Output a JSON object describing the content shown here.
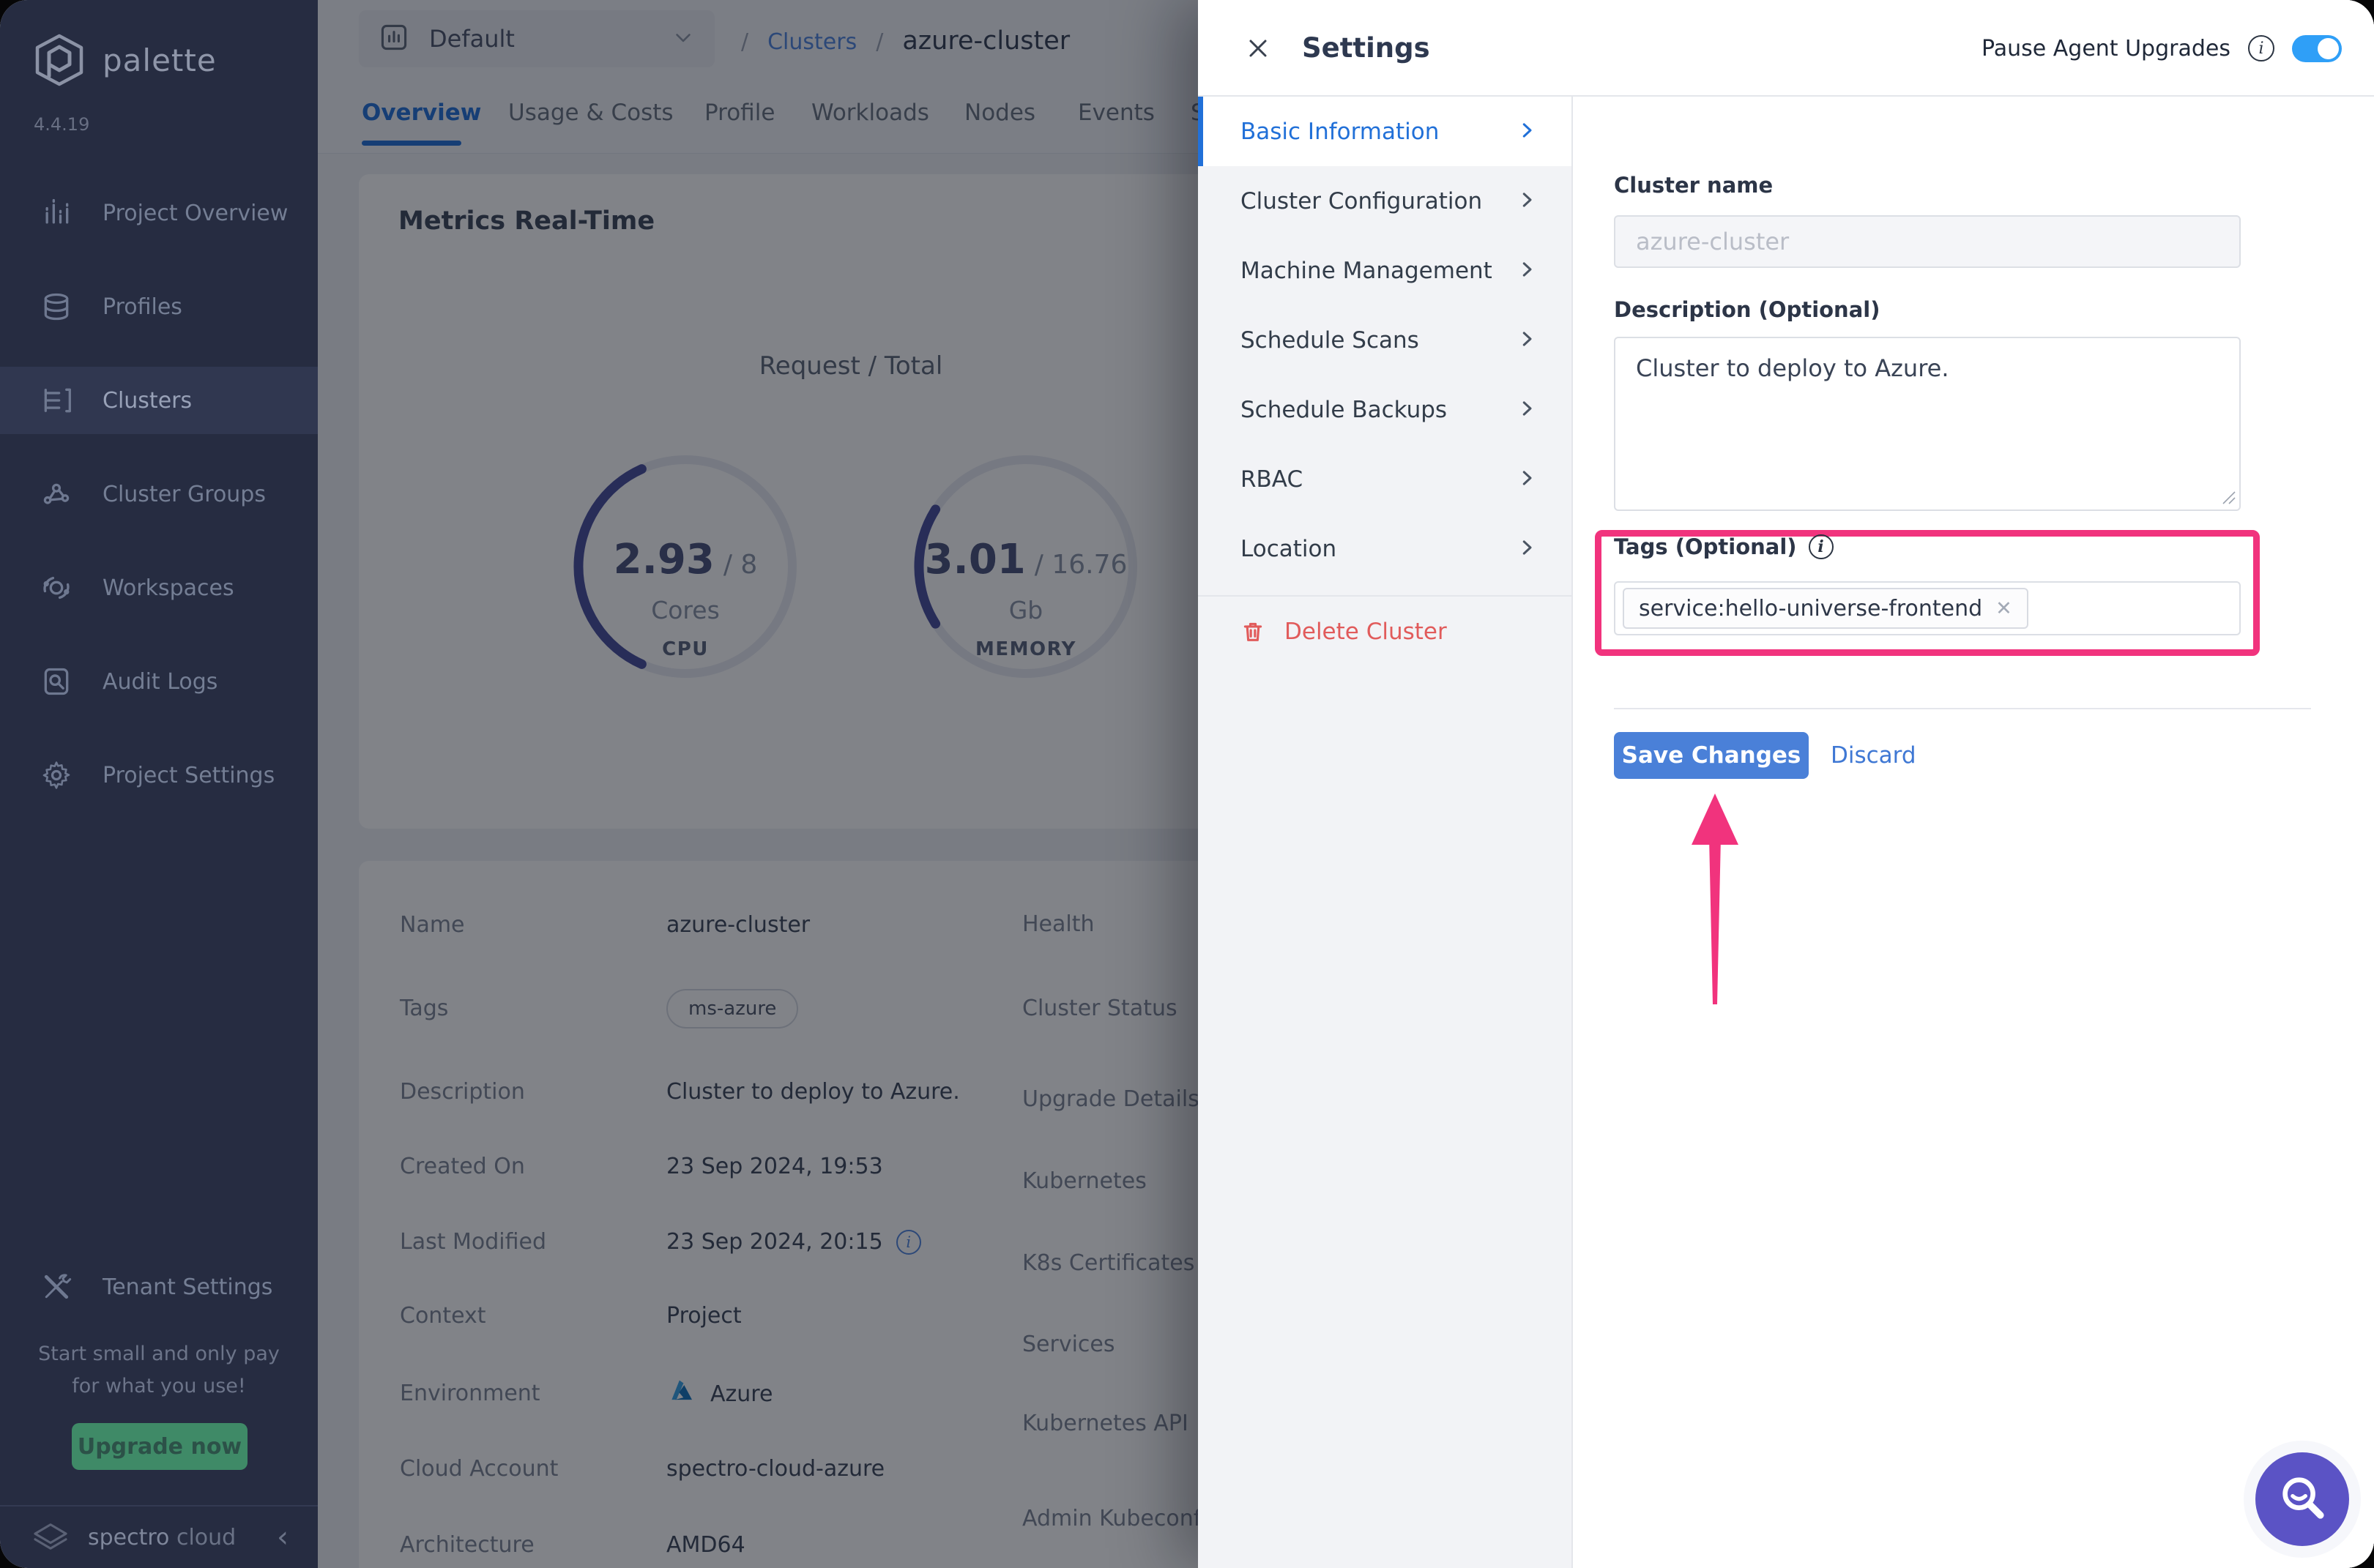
{
  "brand": {
    "name": "palette",
    "version": "4.4.19",
    "footer_a": "spectro",
    "footer_b": "cloud"
  },
  "sidebar": {
    "items": [
      {
        "label": "Project Overview"
      },
      {
        "label": "Profiles"
      },
      {
        "label": "Clusters"
      },
      {
        "label": "Cluster Groups"
      },
      {
        "label": "Workspaces"
      },
      {
        "label": "Audit Logs"
      },
      {
        "label": "Project Settings"
      }
    ],
    "tenant_settings": "Tenant Settings",
    "promo_line1": "Start small and only pay",
    "promo_line2": "for what you use!",
    "upgrade_label": "Upgrade now"
  },
  "topbar": {
    "project_selector": "Default",
    "separator": "/",
    "breadcrumb_link": "Clusters",
    "breadcrumb_current": "azure-cluster"
  },
  "tabs": [
    {
      "label": "Overview"
    },
    {
      "label": "Usage & Costs"
    },
    {
      "label": "Profile"
    },
    {
      "label": "Workloads"
    },
    {
      "label": "Nodes"
    },
    {
      "label": "Events"
    },
    {
      "label": "S"
    }
  ],
  "metrics": {
    "title": "Metrics Real-Time",
    "legend": "Request / Total",
    "cpu": {
      "value": "2.93",
      "total": "/ 8",
      "unit": "Cores",
      "label": "CPU"
    },
    "memory": {
      "value": "3.01",
      "total": "/ 16.76",
      "unit": "Gb",
      "label": "MEMORY"
    }
  },
  "details": {
    "left": [
      {
        "label": "Name",
        "value": "azure-cluster"
      },
      {
        "label": "Tags",
        "value": "ms-azure"
      },
      {
        "label": "Description",
        "value": "Cluster to deploy to Azure."
      },
      {
        "label": "Created On",
        "value": "23 Sep 2024, 19:53"
      },
      {
        "label": "Last Modified",
        "value": "23 Sep 2024, 20:15"
      },
      {
        "label": "Context",
        "value": "Project"
      },
      {
        "label": "Environment",
        "value": "Azure"
      },
      {
        "label": "Cloud Account",
        "value": "spectro-cloud-azure"
      },
      {
        "label": "Architecture",
        "value": "AMD64"
      }
    ],
    "right": [
      {
        "label": "Health"
      },
      {
        "label": "Cluster Status"
      },
      {
        "label": "Upgrade Details"
      },
      {
        "label": "Kubernetes"
      },
      {
        "label": "K8s Certificates"
      },
      {
        "label": "Services"
      },
      {
        "label": "Kubernetes API"
      },
      {
        "label": "Admin Kubeconfig File"
      }
    ]
  },
  "drawer": {
    "title": "Settings",
    "pause_label": "Pause Agent Upgrades",
    "menu": [
      {
        "label": "Basic Information"
      },
      {
        "label": "Cluster Configuration"
      },
      {
        "label": "Machine Management"
      },
      {
        "label": "Schedule Scans"
      },
      {
        "label": "Schedule Backups"
      },
      {
        "label": "RBAC"
      },
      {
        "label": "Location"
      }
    ],
    "delete_label": "Delete Cluster",
    "form": {
      "cluster_name_label": "Cluster name",
      "cluster_name_value": "azure-cluster",
      "description_label": "Description (Optional)",
      "description_value": "Cluster to deploy to Azure.",
      "tags_label": "Tags (Optional)",
      "tag_chip": "service:hello-universe-frontend",
      "save_label": "Save Changes",
      "discard_label": "Discard"
    }
  },
  "chart_data": [
    {
      "type": "gauge",
      "label": "CPU",
      "request": 2.93,
      "total": 8,
      "unit": "Cores",
      "legend": "Request / Total"
    },
    {
      "type": "gauge",
      "label": "MEMORY",
      "request": 3.01,
      "total": 16.76,
      "unit": "Gb",
      "legend": "Request / Total"
    }
  ],
  "colors": {
    "accent_blue": "#2170d8",
    "save_blue": "#4a80d8",
    "link_blue": "#4f84dd",
    "toggle_blue": "#2f9ff7",
    "highlight_pink": "#f1337d",
    "delete_red": "#e15b5b",
    "fab_purple": "#5b53c5",
    "upgrade_green": "#3f8a67",
    "gauge_indigo": "#454b9b",
    "sidebar_bg": "#262c41"
  }
}
